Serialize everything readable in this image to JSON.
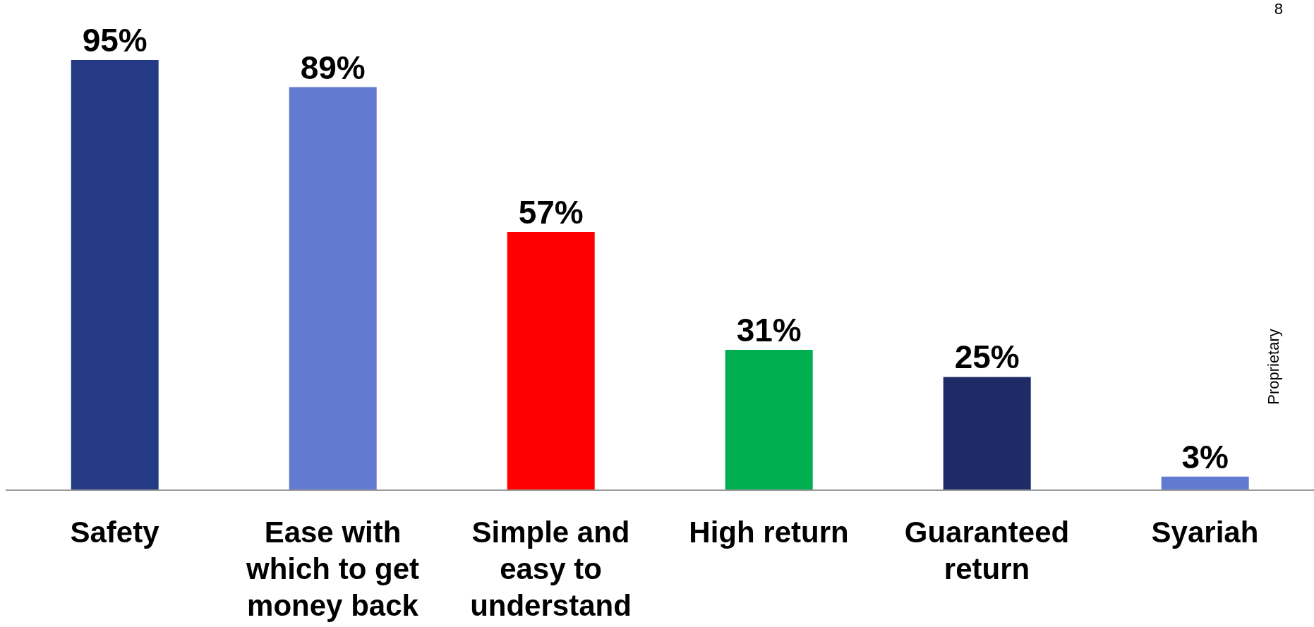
{
  "chart_data": {
    "type": "bar",
    "categories": [
      "Safety",
      "Ease with which to get money back",
      "Simple and easy to understand",
      "High return",
      "Guaranteed return",
      "Syariah"
    ],
    "values": [
      95,
      89,
      57,
      31,
      25,
      3
    ],
    "colors": [
      "#253a85",
      "#627bd1",
      "#ff0000",
      "#00b050",
      "#1f2b66",
      "#627bd1"
    ],
    "value_labels": [
      "95%",
      "89%",
      "57%",
      "31%",
      "25%",
      "3%"
    ],
    "annotations": [
      "8",
      "Proprietary"
    ]
  }
}
